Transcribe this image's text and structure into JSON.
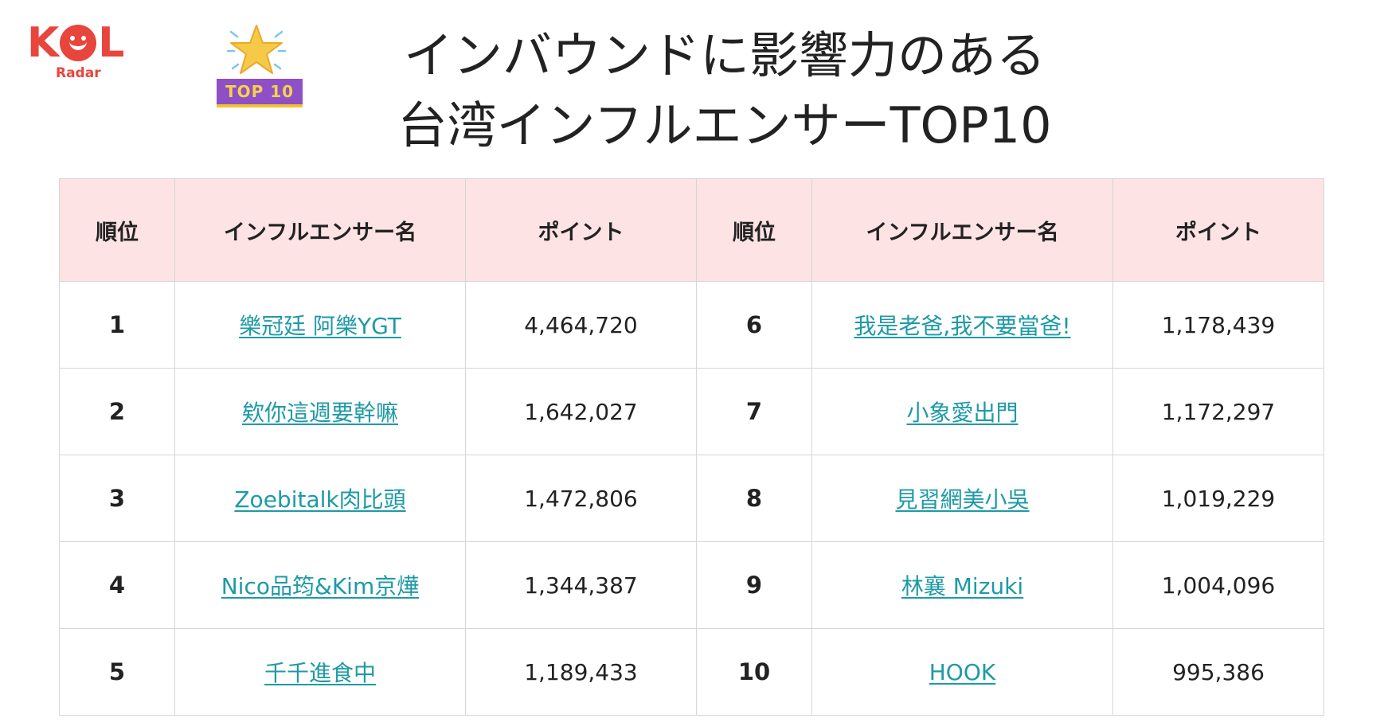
{
  "logo": {
    "word_k": "K",
    "word_l": "L",
    "sub": "Radar"
  },
  "badge": {
    "label": "TOP 10",
    "star_color": "#f7c948",
    "label_bg": "#8e4fc7"
  },
  "title": {
    "line1": "インバウンドに影響力のある",
    "line2": "台湾インフルエンサーTOP10"
  },
  "table": {
    "headers": [
      "順位",
      "インフルエンサー名",
      "ポイント",
      "順位",
      "インフルエンサー名",
      "ポイント"
    ],
    "rows": [
      {
        "rank_a": "1",
        "name_a": "樂冠廷 阿樂YGT",
        "points_a": "4,464,720",
        "rank_b": "6",
        "name_b": "我是老爸,我不要當爸!",
        "points_b": "1,178,439"
      },
      {
        "rank_a": "2",
        "name_a": "欸你這週要幹嘛",
        "points_a": "1,642,027",
        "rank_b": "7",
        "name_b": "小象愛出門",
        "points_b": "1,172,297"
      },
      {
        "rank_a": "3",
        "name_a": "Zoebitalk肉比頭",
        "points_a": "1,472,806",
        "rank_b": "8",
        "name_b": "見習網美小吳",
        "points_b": "1,019,229"
      },
      {
        "rank_a": "4",
        "name_a": "Nico品筠&Kim京燁",
        "points_a": "1,344,387",
        "rank_b": "9",
        "name_b": "林襄 Mizuki",
        "points_b": "1,004,096"
      },
      {
        "rank_a": "5",
        "name_a": "千千進食中",
        "points_a": "1,189,433",
        "rank_b": "10",
        "name_b": "HOOK",
        "points_b": "995,386"
      }
    ]
  },
  "colors": {
    "header_bg": "#fde3e3",
    "link": "#1e9aa6",
    "brand": "#e8453c"
  }
}
